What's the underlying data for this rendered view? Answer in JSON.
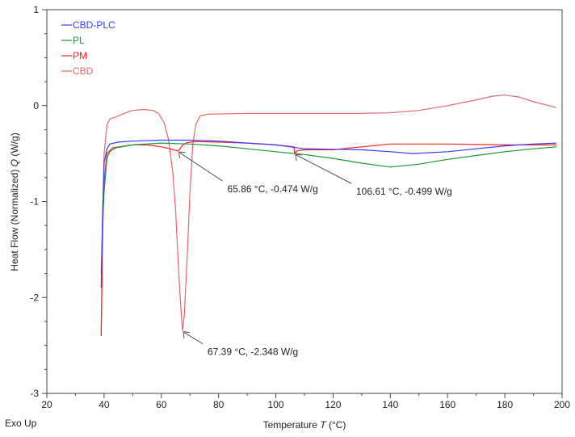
{
  "chart_data": {
    "type": "line",
    "xlabel": "Temperature",
    "xlabel_symbol": "T",
    "xlabel_unit": "(°C)",
    "ylabel": "Heat Flow (Normalized)",
    "ylabel_symbol": "Q",
    "ylabel_unit": "(W/g)",
    "corner_label": "Exo Up",
    "xlim": [
      20,
      200
    ],
    "ylim": [
      -3,
      1
    ],
    "xticks": [
      20,
      40,
      60,
      80,
      100,
      120,
      140,
      160,
      180,
      200
    ],
    "yticks": [
      1,
      0,
      -1,
      -2,
      -3
    ],
    "legend_position": "top-left",
    "series": [
      {
        "name": "CBD-PLC",
        "color": "#3a3aff",
        "x": [
          39,
          39.5,
          40,
          41,
          42,
          45,
          50,
          60,
          70,
          80,
          90,
          100,
          105,
          110,
          120,
          130,
          140,
          148,
          160,
          170,
          180,
          190,
          198
        ],
        "y": [
          -1.9,
          -1.1,
          -0.6,
          -0.45,
          -0.4,
          -0.38,
          -0.37,
          -0.36,
          -0.36,
          -0.37,
          -0.39,
          -0.41,
          -0.43,
          -0.45,
          -0.455,
          -0.46,
          -0.48,
          -0.5,
          -0.48,
          -0.45,
          -0.42,
          -0.4,
          -0.39
        ]
      },
      {
        "name": "PL",
        "color": "#1a9a3a",
        "x": [
          39,
          39.5,
          40,
          41,
          42,
          44,
          50,
          60,
          70,
          80,
          90,
          100,
          110,
          120,
          130,
          140,
          150,
          160,
          170,
          180,
          190,
          198
        ],
        "y": [
          -1.75,
          -1.2,
          -0.9,
          -0.55,
          -0.48,
          -0.44,
          -0.41,
          -0.39,
          -0.4,
          -0.42,
          -0.45,
          -0.48,
          -0.51,
          -0.55,
          -0.6,
          -0.64,
          -0.61,
          -0.56,
          -0.52,
          -0.48,
          -0.45,
          -0.43
        ]
      },
      {
        "name": "PM",
        "color": "#ff2020",
        "x": [
          39,
          39.5,
          40,
          41,
          43,
          50,
          55,
          60,
          63,
          65.86,
          66.5,
          67.5,
          69,
          72,
          80,
          90,
          100,
          106.3,
          106.61,
          107.5,
          110,
          120,
          130,
          140,
          160,
          180,
          198
        ],
        "y": [
          -2.4,
          -1.3,
          -0.8,
          -0.5,
          -0.44,
          -0.41,
          -0.41,
          -0.43,
          -0.45,
          -0.474,
          -0.45,
          -0.41,
          -0.385,
          -0.375,
          -0.38,
          -0.39,
          -0.41,
          -0.43,
          -0.499,
          -0.47,
          -0.46,
          -0.46,
          -0.43,
          -0.4,
          -0.4,
          -0.41,
          -0.41
        ]
      },
      {
        "name": "CBD",
        "color": "#e06a6a",
        "x": [
          39,
          39.5,
          40,
          41,
          42,
          44,
          47,
          50,
          54,
          57,
          59,
          61,
          62.5,
          64,
          65,
          66,
          67,
          67.39,
          68,
          69,
          70,
          71,
          72,
          73.5,
          76,
          90,
          110,
          130,
          140,
          150,
          160,
          170,
          176,
          180,
          185,
          190,
          198
        ],
        "y": [
          -2.4,
          -1.2,
          -0.5,
          -0.2,
          -0.14,
          -0.12,
          -0.08,
          -0.05,
          -0.04,
          -0.05,
          -0.08,
          -0.18,
          -0.35,
          -0.7,
          -1.1,
          -1.7,
          -2.2,
          -2.348,
          -2.2,
          -1.6,
          -0.9,
          -0.4,
          -0.2,
          -0.11,
          -0.09,
          -0.08,
          -0.08,
          -0.08,
          -0.075,
          -0.05,
          0.0,
          0.06,
          0.1,
          0.11,
          0.09,
          0.04,
          -0.02
        ]
      }
    ],
    "annotations": [
      {
        "text": "65.86 °C, -0.474 W/g",
        "x": 65.86,
        "y": -0.474
      },
      {
        "text": "106.61 °C, -0.499 W/g",
        "x": 106.61,
        "y": -0.499
      },
      {
        "text": "67.39 °C, -2.348 W/g",
        "x": 67.39,
        "y": -2.348
      }
    ]
  }
}
